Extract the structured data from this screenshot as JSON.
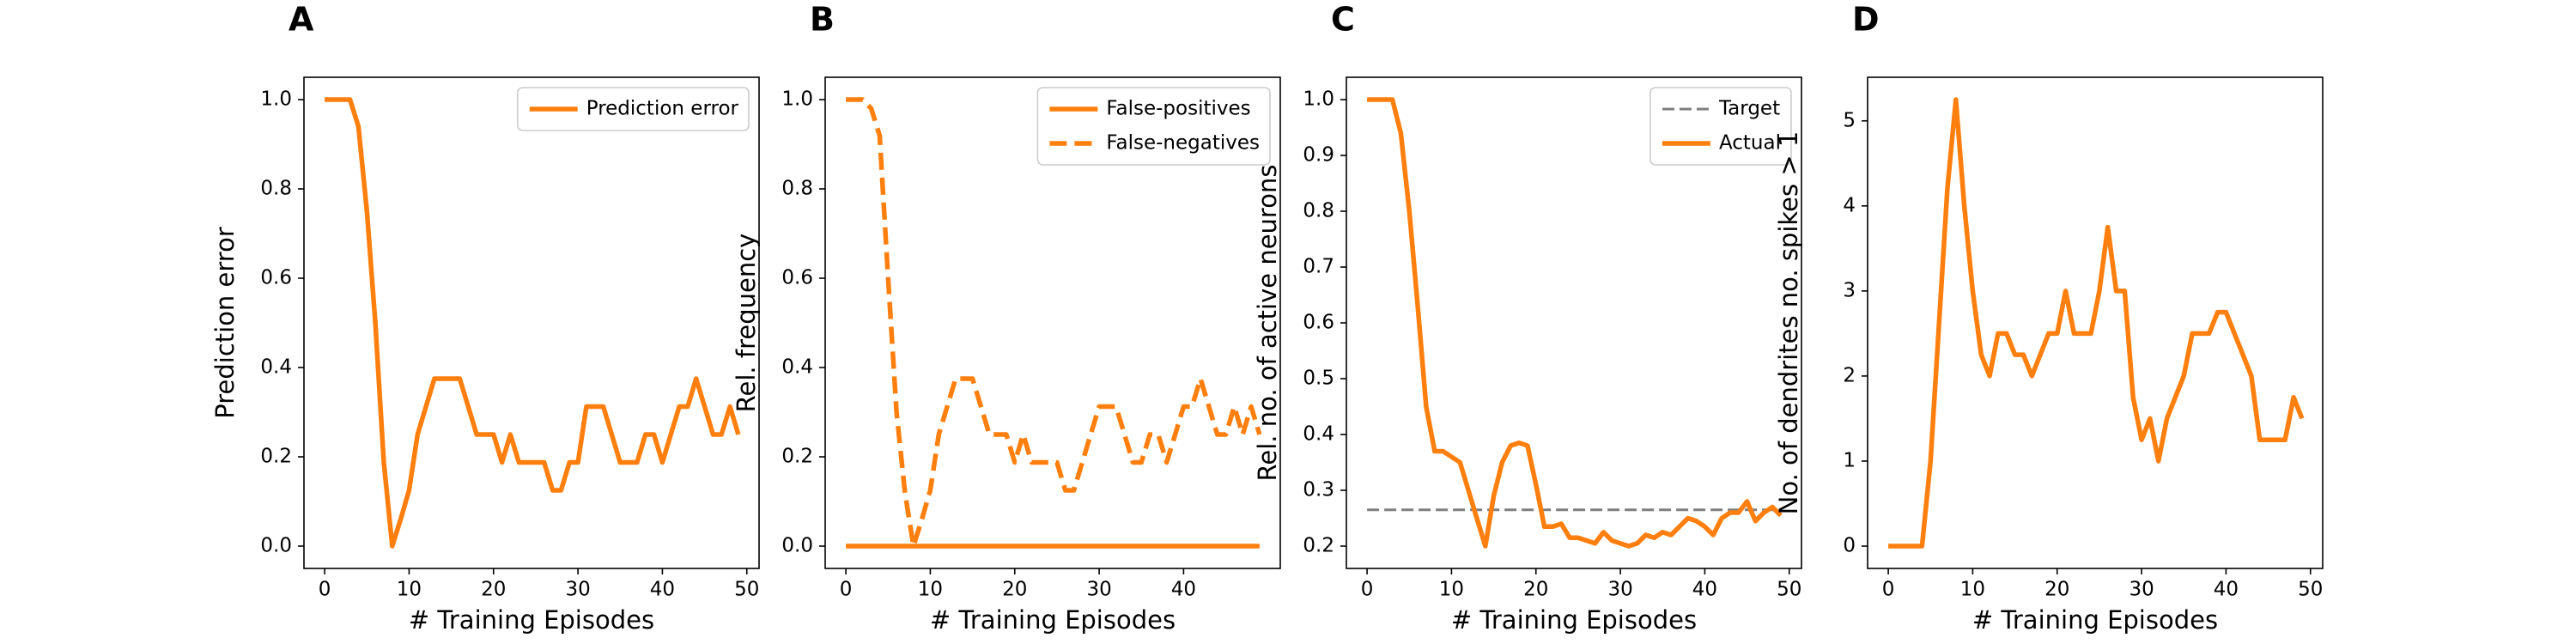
{
  "chart_data": [
    {
      "type": "line",
      "title": "A",
      "xlabel": "# Training Episodes",
      "ylabel": "Prediction error",
      "xlim": [
        -2.45,
        51.45
      ],
      "xticks": [
        0,
        10,
        20,
        30,
        40,
        50
      ],
      "ylim": [
        -0.05,
        1.05
      ],
      "yticks": [
        {
          "value": 0,
          "label": "0.0"
        },
        0.2,
        0.4,
        0.6,
        0.8,
        {
          "value": 1,
          "label": "1.0"
        }
      ],
      "legend": "upper right",
      "series": [
        {
          "name": "Prediction error",
          "color": "#ff7f0e",
          "style": "solid",
          "x": [
            0,
            1,
            2,
            3,
            4,
            5,
            6,
            7,
            8,
            9,
            10,
            11,
            12,
            13,
            14,
            15,
            16,
            17,
            18,
            19,
            20,
            21,
            22,
            23,
            24,
            25,
            26,
            27,
            28,
            29,
            30,
            31,
            32,
            33,
            34,
            35,
            36,
            37,
            38,
            39,
            40,
            41,
            42,
            43,
            44,
            45,
            46,
            47,
            48,
            49
          ],
          "values": [
            1,
            1,
            1,
            1,
            0.94,
            0.75,
            0.5,
            0.19,
            0,
            0.06,
            0.125,
            0.25,
            0.3125,
            0.375,
            0.375,
            0.375,
            0.375,
            0.3125,
            0.25,
            0.25,
            0.25,
            0.1875,
            0.25,
            0.1875,
            0.1875,
            0.1875,
            0.1875,
            0.125,
            0.125,
            0.1875,
            0.1875,
            0.3125,
            0.3125,
            0.3125,
            0.25,
            0.1875,
            0.1875,
            0.1875,
            0.25,
            0.25,
            0.1875,
            0.25,
            0.3125,
            0.3125,
            0.375,
            0.3125,
            0.25,
            0.25,
            0.3125,
            0.25
          ]
        }
      ]
    },
    {
      "type": "line",
      "title": "B",
      "xlabel": "# Training Episodes",
      "ylabel": "Rel. frequency",
      "xlim": [
        -2.45,
        51.45
      ],
      "xticks": [
        0,
        10,
        20,
        30,
        40
      ],
      "ylim": [
        -0.05,
        1.05
      ],
      "yticks": [
        {
          "value": 0,
          "label": "0.0"
        },
        0.2,
        0.4,
        0.6,
        0.8,
        {
          "value": 1,
          "label": "1.0"
        }
      ],
      "legend": "upper right",
      "series": [
        {
          "name": "False-positives",
          "color": "#ff7f0e",
          "style": "solid",
          "x": [
            0,
            1,
            2,
            3,
            4,
            5,
            6,
            7,
            8,
            9,
            10,
            11,
            12,
            13,
            14,
            15,
            16,
            17,
            18,
            19,
            20,
            21,
            22,
            23,
            24,
            25,
            26,
            27,
            28,
            29,
            30,
            31,
            32,
            33,
            34,
            35,
            36,
            37,
            38,
            39,
            40,
            41,
            42,
            43,
            44,
            45,
            46,
            47,
            48,
            49
          ],
          "values": [
            0,
            0,
            0,
            0,
            0,
            0,
            0,
            0,
            0,
            0,
            0,
            0,
            0,
            0,
            0,
            0,
            0,
            0,
            0,
            0,
            0,
            0,
            0,
            0,
            0,
            0,
            0,
            0,
            0,
            0,
            0,
            0,
            0,
            0,
            0,
            0,
            0,
            0,
            0,
            0,
            0,
            0,
            0,
            0,
            0,
            0,
            0,
            0,
            0,
            0
          ]
        },
        {
          "name": "False-negatives",
          "color": "#ff7f0e",
          "style": "dashed",
          "x": [
            0,
            1,
            2,
            3,
            4,
            5,
            6,
            7,
            8,
            9,
            10,
            11,
            12,
            13,
            14,
            15,
            16,
            17,
            18,
            19,
            20,
            21,
            22,
            23,
            24,
            25,
            26,
            27,
            28,
            29,
            30,
            31,
            32,
            33,
            34,
            35,
            36,
            37,
            38,
            39,
            40,
            41,
            42,
            43,
            44,
            45,
            46,
            47,
            48,
            49
          ],
          "values": [
            1,
            1,
            1,
            0.98,
            0.92,
            0.6,
            0.3,
            0.12,
            0,
            0.06,
            0.125,
            0.25,
            0.3125,
            0.375,
            0.375,
            0.375,
            0.3125,
            0.25,
            0.25,
            0.25,
            0.1875,
            0.25,
            0.1875,
            0.1875,
            0.1875,
            0.1875,
            0.125,
            0.125,
            0.1875,
            0.25,
            0.3125,
            0.3125,
            0.3125,
            0.25,
            0.1875,
            0.1875,
            0.25,
            0.25,
            0.1875,
            0.25,
            0.3125,
            0.3125,
            0.375,
            0.3125,
            0.25,
            0.25,
            0.3125,
            0.25,
            0.3125,
            0.25
          ]
        }
      ]
    },
    {
      "type": "line",
      "title": "C",
      "xlabel": "# Training Episodes",
      "ylabel": "Rel. no. of active neurons",
      "xlim": [
        -2.45,
        51.45
      ],
      "xticks": [
        0,
        10,
        20,
        30,
        40,
        50
      ],
      "ylim": [
        0.16,
        1.04
      ],
      "yticks": [
        0.2,
        0.3,
        0.4,
        0.5,
        0.6,
        0.7,
        0.8,
        0.9,
        {
          "value": 1,
          "label": "1.0"
        }
      ],
      "legend": "upper right",
      "series": [
        {
          "name": "Target",
          "color": "#7f7f7f",
          "style": "dashed",
          "width": 3,
          "x": [
            0,
            49
          ],
          "values": [
            0.265,
            0.265
          ]
        },
        {
          "name": "Actual",
          "color": "#ff7f0e",
          "style": "solid",
          "x": [
            0,
            1,
            2,
            3,
            4,
            5,
            6,
            7,
            8,
            9,
            10,
            11,
            12,
            13,
            14,
            15,
            16,
            17,
            18,
            19,
            20,
            21,
            22,
            23,
            24,
            25,
            26,
            27,
            28,
            29,
            30,
            31,
            32,
            33,
            34,
            35,
            36,
            37,
            38,
            39,
            40,
            41,
            42,
            43,
            44,
            45,
            46,
            47,
            48,
            49
          ],
          "values": [
            1,
            1,
            1,
            1,
            0.94,
            0.8,
            0.63,
            0.45,
            0.37,
            0.37,
            0.36,
            0.35,
            0.3,
            0.25,
            0.2,
            0.29,
            0.35,
            0.38,
            0.385,
            0.38,
            0.31,
            0.235,
            0.235,
            0.24,
            0.215,
            0.215,
            0.21,
            0.205,
            0.225,
            0.21,
            0.205,
            0.2,
            0.205,
            0.22,
            0.215,
            0.225,
            0.22,
            0.235,
            0.25,
            0.245,
            0.235,
            0.22,
            0.25,
            0.26,
            0.26,
            0.28,
            0.245,
            0.26,
            0.27,
            0.255
          ]
        }
      ]
    },
    {
      "type": "line",
      "title": "D",
      "xlabel": "# Training Episodes",
      "ylabel": "No. of dendrites no. spikes > 1",
      "xlim": [
        -2.45,
        51.45
      ],
      "xticks": [
        0,
        10,
        20,
        30,
        40,
        50
      ],
      "ylim": [
        -0.2625,
        5.5125
      ],
      "yticks": [
        0,
        1,
        2,
        3,
        4,
        5
      ],
      "series": [
        {
          "color": "#ff7f0e",
          "style": "solid",
          "x": [
            0,
            1,
            2,
            3,
            4,
            5,
            6,
            7,
            8,
            9,
            10,
            11,
            12,
            13,
            14,
            15,
            16,
            17,
            18,
            19,
            20,
            21,
            22,
            23,
            24,
            25,
            26,
            27,
            28,
            29,
            30,
            31,
            32,
            33,
            34,
            35,
            36,
            37,
            38,
            39,
            40,
            41,
            42,
            43,
            44,
            45,
            46,
            47,
            48,
            49
          ],
          "values": [
            0,
            0,
            0,
            0,
            0,
            1,
            2.6,
            4.2,
            5.25,
            4,
            3,
            2.25,
            2,
            2.5,
            2.5,
            2.25,
            2.25,
            2,
            2.25,
            2.5,
            2.5,
            3,
            2.5,
            2.5,
            2.5,
            3,
            3.75,
            3,
            3,
            1.75,
            1.25,
            1.5,
            1,
            1.5,
            1.75,
            2,
            2.5,
            2.5,
            2.5,
            2.75,
            2.75,
            2.5,
            2.25,
            2,
            1.25,
            1.25,
            1.25,
            1.25,
            1.75,
            1.5
          ]
        }
      ]
    }
  ]
}
